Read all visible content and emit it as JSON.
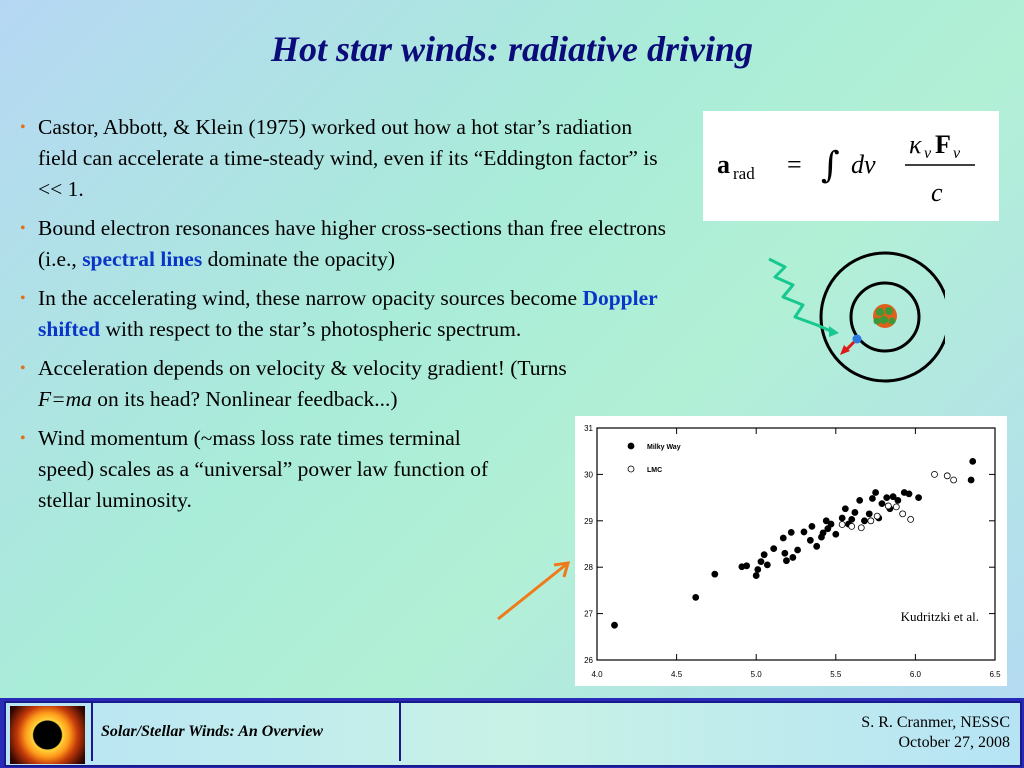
{
  "title": "Hot star winds:  radiative driving",
  "bullets": [
    {
      "pre": "Castor, Abbott, & Klein (1975) worked out how a hot star’s radiation field can accelerate a time-steady wind, even if its “Eddington factor” is << 1."
    },
    {
      "pre": "Bound electron resonances have higher cross-sections than free electrons  (i.e., ",
      "highlight": "spectral lines",
      "post": " dominate the opacity)"
    },
    {
      "pre": "In the accelerating wind, these narrow opacity sources become ",
      "highlight": "Doppler shifted",
      "post": " with respect to the star’s photospheric spectrum."
    },
    {
      "pre": "Acceleration depends on velocity & velocity gradient! (Turns ",
      "italic": "F=ma",
      "post": " on its head? Nonlinear feedback...)"
    },
    {
      "pre": "Wind momentum (~mass loss rate times terminal speed) scales as a “universal” power law function of stellar luminosity."
    }
  ],
  "formula": {
    "lhs_a": "a",
    "lhs_sub": "rad",
    "eq": "=",
    "integral": "∫",
    "dnu": "dν",
    "num_kappa": "κ",
    "num_kappa_sub": "ν",
    "num_F": "F",
    "num_F_sub": "ν",
    "den": "c"
  },
  "chart_data": {
    "type": "scatter",
    "xlim": [
      4.0,
      6.5
    ],
    "ylim": [
      26,
      31
    ],
    "x_ticks": [
      "4.0",
      "4.5",
      "5.0",
      "5.5",
      "6.0",
      "6.5"
    ],
    "y_ticks": [
      "26",
      "27",
      "28",
      "29",
      "30",
      "31"
    ],
    "annotation": "Kudritzki et al.",
    "series": [
      {
        "name": "Milky Way",
        "marker": "filled",
        "points": [
          [
            4.11,
            26.75
          ],
          [
            4.62,
            27.35
          ],
          [
            4.74,
            27.85
          ],
          [
            4.91,
            28.01
          ],
          [
            4.94,
            28.03
          ],
          [
            5.0,
            27.82
          ],
          [
            5.01,
            27.95
          ],
          [
            5.03,
            28.12
          ],
          [
            5.05,
            28.27
          ],
          [
            5.07,
            28.05
          ],
          [
            5.11,
            28.4
          ],
          [
            5.17,
            28.63
          ],
          [
            5.18,
            28.3
          ],
          [
            5.19,
            28.14
          ],
          [
            5.22,
            28.75
          ],
          [
            5.23,
            28.21
          ],
          [
            5.26,
            28.37
          ],
          [
            5.3,
            28.76
          ],
          [
            5.34,
            28.58
          ],
          [
            5.35,
            28.88
          ],
          [
            5.38,
            28.45
          ],
          [
            5.41,
            28.65
          ],
          [
            5.42,
            28.74
          ],
          [
            5.44,
            29.0
          ],
          [
            5.45,
            28.83
          ],
          [
            5.47,
            28.93
          ],
          [
            5.5,
            28.71
          ],
          [
            5.54,
            29.06
          ],
          [
            5.56,
            29.26
          ],
          [
            5.58,
            28.93
          ],
          [
            5.6,
            29.03
          ],
          [
            5.62,
            29.18
          ],
          [
            5.65,
            29.44
          ],
          [
            5.68,
            29.0
          ],
          [
            5.71,
            29.15
          ],
          [
            5.73,
            29.48
          ],
          [
            5.75,
            29.61
          ],
          [
            5.77,
            29.06
          ],
          [
            5.79,
            29.37
          ],
          [
            5.82,
            29.5
          ],
          [
            5.84,
            29.26
          ],
          [
            5.86,
            29.52
          ],
          [
            5.89,
            29.44
          ],
          [
            5.93,
            29.61
          ],
          [
            5.96,
            29.58
          ],
          [
            6.02,
            29.5
          ],
          [
            6.35,
            29.88
          ],
          [
            6.36,
            30.28
          ]
        ]
      },
      {
        "name": "LMC",
        "marker": "open",
        "points": [
          [
            5.54,
            28.92
          ],
          [
            5.6,
            28.88
          ],
          [
            5.66,
            28.85
          ],
          [
            5.72,
            29.0
          ],
          [
            5.76,
            29.1
          ],
          [
            5.83,
            29.32
          ],
          [
            5.88,
            29.3
          ],
          [
            5.92,
            29.15
          ],
          [
            5.97,
            29.03
          ],
          [
            6.12,
            30.0
          ],
          [
            6.2,
            29.97
          ],
          [
            6.24,
            29.88
          ]
        ]
      }
    ]
  },
  "footer": {
    "title": "Solar/Stellar Winds: An Overview",
    "author": "S. R. Cranmer, NESSC",
    "date": "October 27, 2008"
  }
}
